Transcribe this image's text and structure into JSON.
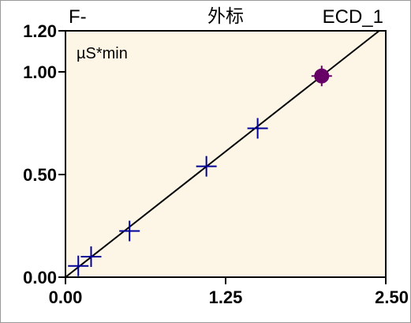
{
  "colors": {
    "plot_background": "#fdf6e6",
    "axis": "#000000",
    "regression_line": "#000000",
    "standard_marker": "#000099",
    "sample_marker": "#660066"
  },
  "header": {
    "analyte": "F-",
    "method": "外标",
    "detector": "ECD_1"
  },
  "chart_data": {
    "type": "scatter",
    "ylabel": "µS*min",
    "xlim": [
      0,
      2.5
    ],
    "ylim": [
      0,
      1.2
    ],
    "x_ticks": [
      {
        "value": 0,
        "label": "0.00"
      },
      {
        "value": 1.25,
        "label": "1.25"
      },
      {
        "value": 2.5,
        "label": "2.50"
      }
    ],
    "y_ticks": [
      {
        "value": 0,
        "label": "0.00"
      },
      {
        "value": 0.5,
        "label": "0.50"
      },
      {
        "value": 1.0,
        "label": "1.00"
      },
      {
        "value": 1.2,
        "label": "1.20"
      }
    ],
    "calibration_points": [
      {
        "x": 0.1,
        "y": 0.055
      },
      {
        "x": 0.2,
        "y": 0.1
      },
      {
        "x": 0.5,
        "y": 0.225
      },
      {
        "x": 1.1,
        "y": 0.54
      },
      {
        "x": 1.5,
        "y": 0.725
      }
    ],
    "sample_point": {
      "x": 2.0,
      "y": 0.98
    },
    "regression_line": {
      "slope": 0.49,
      "intercept": 0.0
    }
  }
}
